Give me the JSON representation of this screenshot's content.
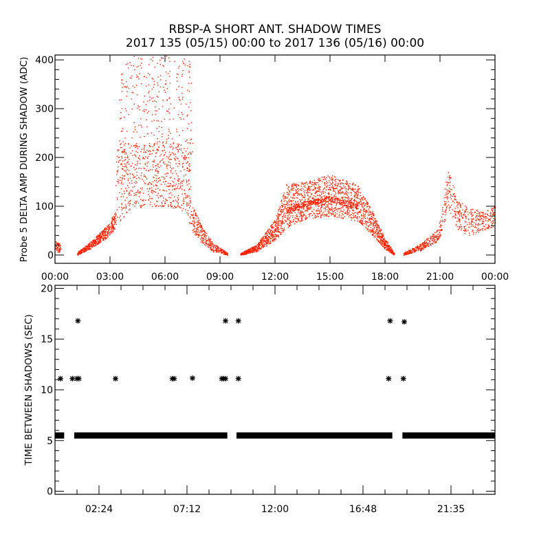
{
  "title_line1": "RBSP-A SHORT ANT. SHADOW TIMES",
  "title_line2": "2017 135 (05/15) 00:00 to 2017 136 (05/16) 00:00",
  "colors": {
    "points_top": "#ff2200",
    "points_bottom": "#000000",
    "axis": "#000000"
  },
  "chart_data": [
    {
      "type": "scatter",
      "title": "RBSP-A SHORT ANT. SHADOW TIMES",
      "xlabel": "",
      "ylabel": "Probe 5 DELTA AMP DURING SHADOW (ADC)",
      "x_units": "hours",
      "xlim": [
        0,
        24
      ],
      "ylim": [
        -17,
        410
      ],
      "xticks": [
        0,
        3,
        6,
        9,
        12,
        15,
        18,
        21,
        24
      ],
      "xtick_labels": [
        "00:00",
        "03:00",
        "06:00",
        "09:00",
        "12:00",
        "15:00",
        "18:00",
        "21:00",
        "00:00"
      ],
      "yticks": [
        0,
        100,
        200,
        300,
        400
      ],
      "ytick_labels": [
        "0",
        "100",
        "200",
        "300",
        "400"
      ],
      "series_bands": [
        {
          "t": [
            0.0,
            0.3
          ],
          "lo": [
            8,
            5
          ],
          "hi": [
            30,
            22
          ],
          "density": 60
        },
        {
          "t": [
            1.2,
            2.0,
            2.8,
            3.3
          ],
          "lo": [
            0,
            15,
            35,
            55
          ],
          "hi": [
            6,
            30,
            60,
            90
          ],
          "density": 500
        },
        {
          "t": [
            3.3,
            4.0,
            5.0,
            6.0,
            7.0,
            7.4
          ],
          "lo": [
            60,
            90,
            100,
            100,
            90,
            60
          ],
          "hi": [
            240,
            230,
            230,
            230,
            230,
            200
          ],
          "density": 700
        },
        {
          "t": [
            3.5,
            4.0,
            5.0,
            6.0,
            7.0,
            7.5
          ],
          "lo": [
            200,
            230,
            230,
            230,
            230,
            200
          ],
          "hi": [
            380,
            410,
            410,
            410,
            410,
            400
          ],
          "density": 280
        },
        {
          "t": [
            7.4,
            8.0,
            8.6,
            9.4
          ],
          "lo": [
            50,
            25,
            8,
            0
          ],
          "hi": [
            110,
            60,
            25,
            5
          ],
          "density": 350
        },
        {
          "t": [
            10.1,
            11.0,
            12.0,
            12.6,
            13.5,
            15.0,
            16.5,
            17.3,
            18.0,
            18.5
          ],
          "lo": [
            0,
            8,
            30,
            55,
            72,
            80,
            70,
            40,
            12,
            0
          ],
          "hi": [
            4,
            22,
            75,
            145,
            150,
            165,
            145,
            90,
            35,
            4
          ],
          "density": 2200
        },
        {
          "t": [
            12.6,
            13.5,
            15.0,
            16.5
          ],
          "lo": [
            85,
            100,
            110,
            95
          ],
          "hi": [
            95,
            110,
            122,
            105
          ],
          "density": 350
        },
        {
          "t": [
            19.0,
            20.0,
            20.9,
            21.3,
            21.5,
            21.9,
            22.5,
            23.3,
            24.0
          ],
          "lo": [
            0,
            10,
            30,
            70,
            90,
            55,
            40,
            50,
            60
          ],
          "hi": [
            5,
            25,
            55,
            150,
            182,
            115,
            100,
            90,
            105
          ],
          "density": 700
        }
      ]
    },
    {
      "type": "scatter",
      "xlabel": "",
      "ylabel": "TIME BETWEEN SHADOWS (SEC)",
      "x_units": "hours",
      "xlim": [
        0,
        24
      ],
      "ylim": [
        -0.3,
        20.3
      ],
      "xticks": [
        2.4,
        7.2,
        12.0,
        16.8,
        21.6
      ],
      "xtick_labels": [
        "02:24",
        "07:12",
        "12:00",
        "16:48",
        "21:35"
      ],
      "yticks": [
        0,
        5,
        10,
        15,
        20
      ],
      "ytick_labels": [
        "0",
        "5",
        "10",
        "15",
        "20"
      ],
      "baseline_segments": [
        {
          "start": 0.0,
          "end": 0.5,
          "value": 5.5
        },
        {
          "start": 1.05,
          "end": 9.4,
          "value": 5.5
        },
        {
          "start": 9.9,
          "end": 18.4,
          "value": 5.5
        },
        {
          "start": 18.95,
          "end": 24.0,
          "value": 5.5
        }
      ],
      "points": [
        {
          "x": 0.3,
          "y": 11.1
        },
        {
          "x": 0.95,
          "y": 11.1
        },
        {
          "x": 1.2,
          "y": 11.1
        },
        {
          "x": 1.3,
          "y": 11.1
        },
        {
          "x": 1.25,
          "y": 16.8
        },
        {
          "x": 3.3,
          "y": 11.1
        },
        {
          "x": 6.4,
          "y": 11.1
        },
        {
          "x": 6.5,
          "y": 11.1
        },
        {
          "x": 7.5,
          "y": 11.15
        },
        {
          "x": 9.1,
          "y": 11.1
        },
        {
          "x": 9.2,
          "y": 11.1
        },
        {
          "x": 9.3,
          "y": 11.1
        },
        {
          "x": 9.3,
          "y": 16.8
        },
        {
          "x": 10.0,
          "y": 11.1
        },
        {
          "x": 10.0,
          "y": 16.8
        },
        {
          "x": 18.2,
          "y": 11.1
        },
        {
          "x": 18.28,
          "y": 16.8
        },
        {
          "x": 19.0,
          "y": 11.1
        },
        {
          "x": 19.05,
          "y": 16.7
        }
      ]
    }
  ]
}
